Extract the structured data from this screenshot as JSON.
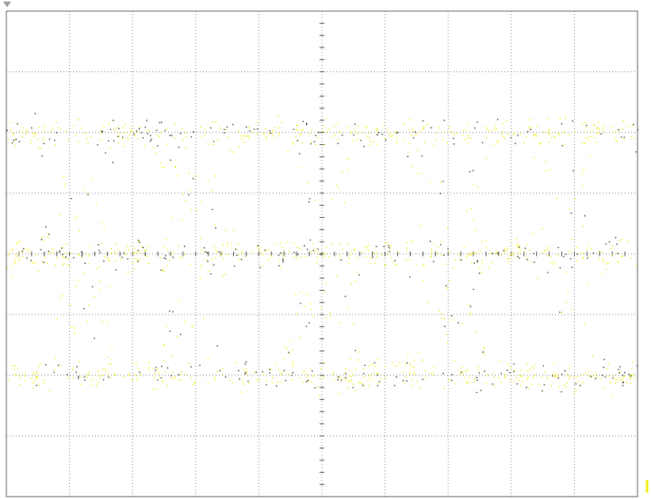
{
  "display": {
    "background": "#ffffff",
    "trace_color": "#f2ec00",
    "trace_dark_color": "#1c1c00",
    "grid_color": "#6f6f6f",
    "frame_color": "#5a5a5a",
    "trigger_marker_icon": "down-triangle-icon",
    "ground_marker_icon": "ground-level-marker-icon"
  },
  "chart_data": {
    "type": "scatter",
    "plot_kind": "eye-diagram",
    "title": "",
    "xlabel": "",
    "ylabel": "",
    "grid": true,
    "divisions": {
      "x": 10,
      "y": 8
    },
    "xlim": [
      -5,
      5
    ],
    "ylim": [
      -4,
      4
    ],
    "levels": [
      2.0,
      0.0,
      -2.0
    ],
    "level_spread": 0.55,
    "eye_crossings_x": [
      -3.9,
      -2.0,
      0.0,
      2.0,
      3.9
    ],
    "series": [
      {
        "values": "persistence-samples"
      }
    ]
  }
}
